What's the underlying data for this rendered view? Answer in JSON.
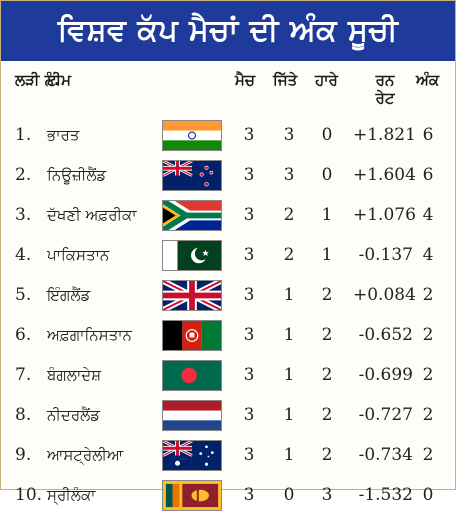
{
  "title": "ਵਿਸ਼ਵ ਕੱਪ ਮੈਚਾਂ ਦੀ ਅੰਕ ਸੂਚੀ",
  "headers": {
    "serial": "ਲੜੀ ਨੰ.",
    "team": "ਟੀਮ",
    "matches": "ਮੈਚ",
    "won": "ਜਿੱਤੇ",
    "lost": "ਹਾਰੇ",
    "run_rate": "ਰਨ ਰੇਟ",
    "points": "ਅੰਕ"
  },
  "colors": {
    "banner": "#1e3a9a"
  },
  "rows": [
    {
      "serial": "1.",
      "team": "ਭਾਰਤ",
      "flag": "india-flag-icon",
      "matches": "3",
      "won": "3",
      "lost": "0",
      "run_rate": "+1.821",
      "points": "6"
    },
    {
      "serial": "2.",
      "team": "ਨਿਊਜ਼ੀਲੈਂਡ",
      "flag": "new-zealand-flag-icon",
      "matches": "3",
      "won": "3",
      "lost": "0",
      "run_rate": "+1.604",
      "points": "6"
    },
    {
      "serial": "3.",
      "team": "ਦੱਖਣੀ ਅਫ਼ਰੀਕਾ",
      "flag": "south-africa-flag-icon",
      "matches": "3",
      "won": "2",
      "lost": "1",
      "run_rate": "+1.076",
      "points": "4"
    },
    {
      "serial": "4.",
      "team": "ਪਾਕਿਸਤਾਨ",
      "flag": "pakistan-flag-icon",
      "matches": "3",
      "won": "2",
      "lost": "1",
      "run_rate": "-0.137",
      "points": "4"
    },
    {
      "serial": "5.",
      "team": "ਇੰਗਲੈਂਡ",
      "flag": "england-flag-icon",
      "matches": "3",
      "won": "1",
      "lost": "2",
      "run_rate": "+0.084",
      "points": "2"
    },
    {
      "serial": "6.",
      "team": "ਅਫ਼ਗਾਨਿਸਤਾਨ",
      "flag": "afghanistan-flag-icon",
      "matches": "3",
      "won": "1",
      "lost": "2",
      "run_rate": "-0.652",
      "points": "2"
    },
    {
      "serial": "7.",
      "team": "ਬੰਗਲਾਦੇਸ਼",
      "flag": "bangladesh-flag-icon",
      "matches": "3",
      "won": "1",
      "lost": "2",
      "run_rate": "-0.699",
      "points": "2"
    },
    {
      "serial": "8.",
      "team": "ਨੀਦਰਲੈਂਡ",
      "flag": "netherlands-flag-icon",
      "matches": "3",
      "won": "1",
      "lost": "2",
      "run_rate": "-0.727",
      "points": "2"
    },
    {
      "serial": "9.",
      "team": "ਆਸਟ੍ਰੇਲੀਆ",
      "flag": "australia-flag-icon",
      "matches": "3",
      "won": "1",
      "lost": "2",
      "run_rate": "-0.734",
      "points": "2"
    },
    {
      "serial": "10.",
      "team": "ਸ੍ਰੀਲੰਕਾ",
      "flag": "sri-lanka-flag-icon",
      "matches": "3",
      "won": "0",
      "lost": "3",
      "run_rate": "-1.532",
      "points": "0"
    }
  ]
}
